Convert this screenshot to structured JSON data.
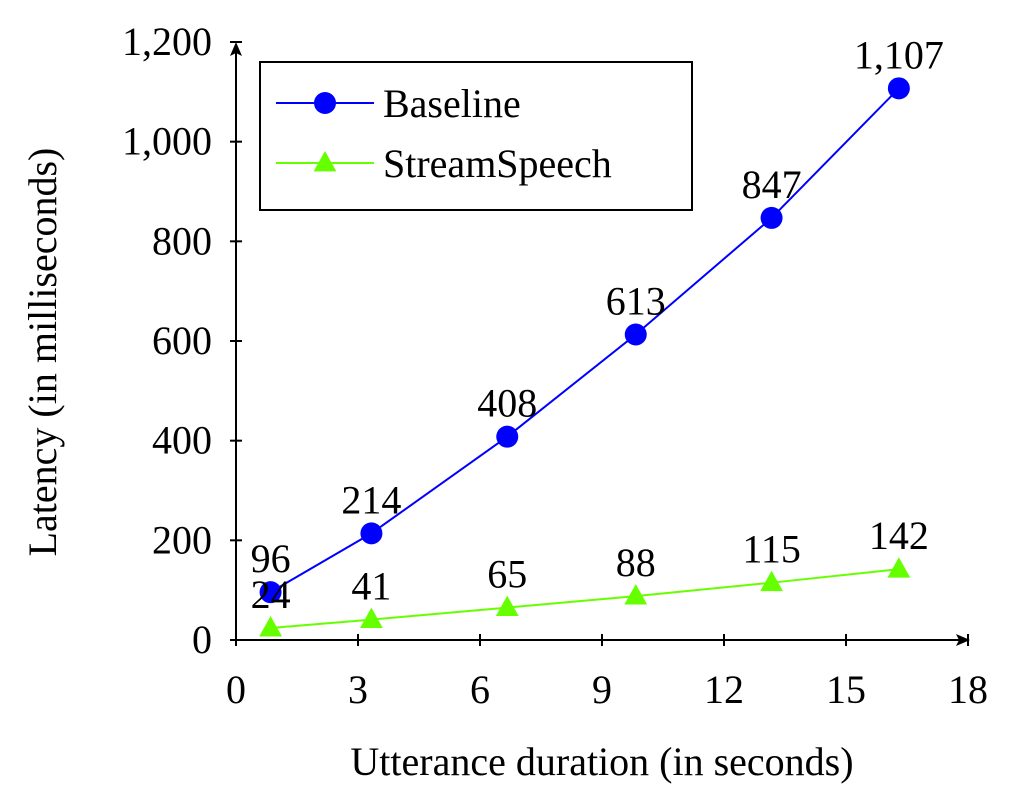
{
  "chart_data": {
    "type": "line",
    "title": "",
    "xlabel": "Utterance duration (in seconds)",
    "ylabel": "Latency (in milliseconds)",
    "xlim": [
      0,
      18
    ],
    "ylim": [
      0,
      1200
    ],
    "xticks": [
      0,
      3,
      6,
      9,
      12,
      15,
      18
    ],
    "xtick_labels": [
      "0",
      "3",
      "6",
      "9",
      "12",
      "15",
      "18"
    ],
    "yticks": [
      0,
      200,
      400,
      600,
      800,
      1000,
      1200
    ],
    "ytick_labels": [
      "0",
      "200",
      "400",
      "600",
      "800",
      "1,000",
      "1,200"
    ],
    "grid": false,
    "legend_position": "top-left",
    "series": [
      {
        "name": "Baseline",
        "color": "#0000ff",
        "marker": "circle",
        "x": [
          0.85,
          3.33,
          6.67,
          9.83,
          13.17,
          16.3
        ],
        "y": [
          96,
          214,
          408,
          613,
          847,
          1107
        ],
        "labels": [
          "96",
          "214",
          "408",
          "613",
          "847",
          "1,107"
        ]
      },
      {
        "name": "StreamSpeech",
        "color": "#66ff00",
        "marker": "triangle",
        "x": [
          0.85,
          3.33,
          6.67,
          9.83,
          13.17,
          16.3
        ],
        "y": [
          24,
          41,
          65,
          88,
          115,
          142
        ],
        "labels": [
          "24",
          "41",
          "65",
          "88",
          "115",
          "142"
        ]
      }
    ]
  }
}
